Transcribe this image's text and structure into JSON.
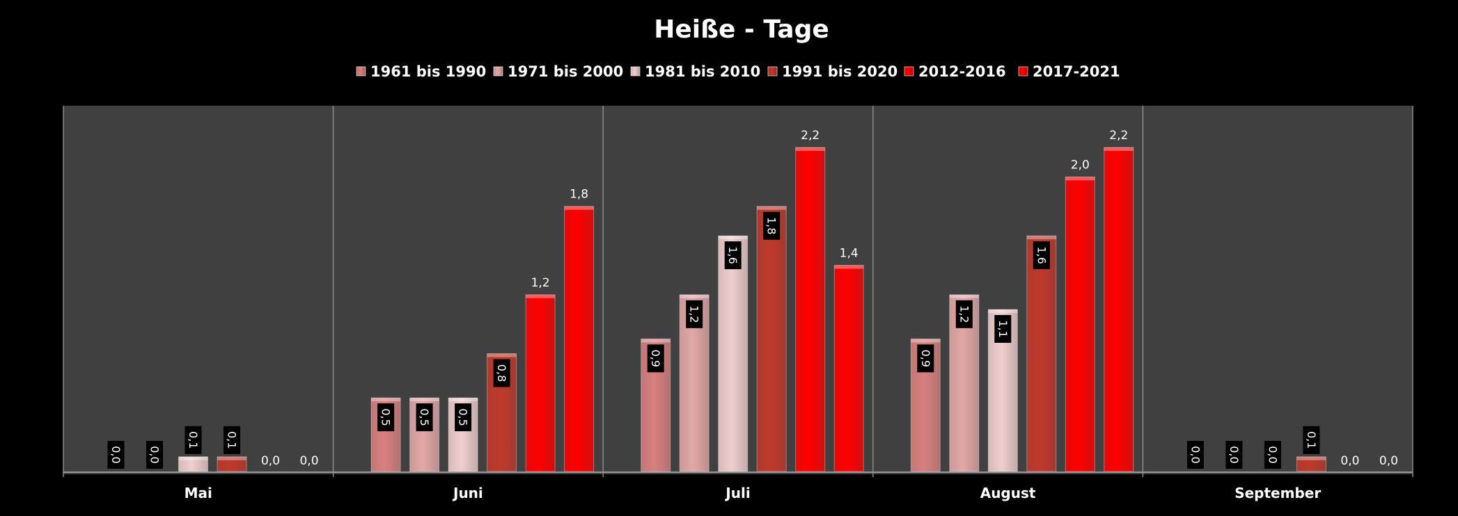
{
  "chart_data": {
    "type": "bar",
    "title": "Heiße - Tage",
    "categories": [
      "Mai",
      "Juni",
      "Juli",
      "August",
      "September"
    ],
    "series": [
      {
        "name": "1961 bis 1990",
        "values": [
          0.0,
          0.5,
          0.9,
          0.9,
          0.0
        ],
        "labels": [
          "0,0",
          "0,5",
          "0,9",
          "0,9",
          "0,0"
        ],
        "color": "#d98080"
      },
      {
        "name": "1971 bis 2000",
        "values": [
          0.0,
          0.5,
          1.2,
          1.2,
          0.0
        ],
        "labels": [
          "0,0",
          "0,5",
          "1,2",
          "1,2",
          "0,0"
        ],
        "color": "#e3a8a8"
      },
      {
        "name": "1981 bis 2010",
        "values": [
          0.1,
          0.5,
          1.6,
          1.1,
          0.0
        ],
        "labels": [
          "0,1",
          "0,5",
          "1,6",
          "1,1",
          "0,0"
        ],
        "color": "#f0cece"
      },
      {
        "name": "1991 bis 2020",
        "values": [
          0.1,
          0.8,
          1.8,
          1.6,
          0.1
        ],
        "labels": [
          "0,1",
          "0,8",
          "1,8",
          "1,6",
          "0,1"
        ],
        "color": "#c0392b"
      },
      {
        "name": "2012-2016",
        "values": [
          0.0,
          1.2,
          2.2,
          2.0,
          0.0
        ],
        "labels": [
          "0,0",
          "1,2",
          "2,2",
          "2,0",
          "0,0"
        ],
        "color": "#ff0000"
      },
      {
        "name": "2017-2021",
        "values": [
          0.0,
          1.8,
          1.4,
          2.2,
          0.0
        ],
        "labels": [
          "0,0",
          "1,8",
          "1,4",
          "2,2",
          "0,0"
        ],
        "color": "#ff0000"
      }
    ],
    "ylim": [
      0,
      2.5
    ],
    "label_style": [
      "boxed",
      "boxed",
      "boxed",
      "boxed",
      "plain",
      "plain"
    ],
    "legend_position": "top",
    "background": "#000000",
    "plot_background": "#404040",
    "grid": false
  }
}
